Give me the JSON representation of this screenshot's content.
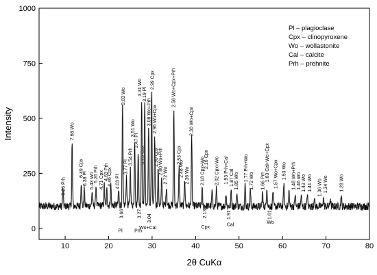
{
  "chart_data": {
    "type": "line",
    "xlabel": "2θ CuKα",
    "ylabel": "Intensity",
    "xlim": [
      4,
      80
    ],
    "ylim": [
      -50,
      1000
    ],
    "xticks": [
      10,
      20,
      30,
      40,
      50,
      60,
      70,
      80
    ],
    "yticks": [
      0,
      250,
      500,
      750,
      1000
    ],
    "grid": false,
    "legend_position": "top-right",
    "legend": [
      "Pl – plagioclase",
      "Cpx – clinopyroxene",
      "Wo – wollastonite",
      "Cal – calcite",
      "Prh – prehnite"
    ],
    "baseline": 100,
    "peaks": [
      {
        "x": 9.5,
        "y": 185
      },
      {
        "x": 11.6,
        "y": 385
      },
      {
        "x": 13.7,
        "y": 210
      },
      {
        "x": 14.4,
        "y": 178
      },
      {
        "x": 16.2,
        "y": 162
      },
      {
        "x": 17.1,
        "y": 190
      },
      {
        "x": 19.0,
        "y": 195
      },
      {
        "x": 19.6,
        "y": 172
      },
      {
        "x": 20.5,
        "y": 192
      },
      {
        "x": 22.3,
        "y": 165
      },
      {
        "x": 23.2,
        "y": 540
      },
      {
        "x": 24.1,
        "y": 230
      },
      {
        "x": 25.0,
        "y": 265
      },
      {
        "x": 26.0,
        "y": 400
      },
      {
        "x": 26.8,
        "y": 340
      },
      {
        "x": 27.6,
        "y": 580
      },
      {
        "x": 28.3,
        "y": 555
      },
      {
        "x": 29.2,
        "y": 440
      },
      {
        "x": 29.9,
        "y": 610
      },
      {
        "x": 30.6,
        "y": 410
      },
      {
        "x": 31.4,
        "y": 265
      },
      {
        "x": 32.2,
        "y": 215
      },
      {
        "x": 33.3,
        "y": 185
      },
      {
        "x": 35.0,
        "y": 530
      },
      {
        "x": 36.2,
        "y": 275
      },
      {
        "x": 37.5,
        "y": 225
      },
      {
        "x": 39.1,
        "y": 405
      },
      {
        "x": 41.5,
        "y": 180
      },
      {
        "x": 43.8,
        "y": 168
      },
      {
        "x": 44.8,
        "y": 178
      },
      {
        "x": 47.0,
        "y": 160
      },
      {
        "x": 48.2,
        "y": 175
      },
      {
        "x": 49.5,
        "y": 160
      },
      {
        "x": 51.4,
        "y": 195
      },
      {
        "x": 52.6,
        "y": 170
      },
      {
        "x": 55.4,
        "y": 160
      },
      {
        "x": 56.4,
        "y": 190
      },
      {
        "x": 57.8,
        "y": 170
      },
      {
        "x": 60.3,
        "y": 205
      },
      {
        "x": 61.5,
        "y": 168
      },
      {
        "x": 62.9,
        "y": 155
      },
      {
        "x": 64.3,
        "y": 150
      },
      {
        "x": 65.7,
        "y": 158
      },
      {
        "x": 67.3,
        "y": 142
      },
      {
        "x": 69.4,
        "y": 140
      },
      {
        "x": 71.0,
        "y": 138
      },
      {
        "x": 73.5,
        "y": 150
      }
    ],
    "annotations": [
      {
        "text": "9.26 Prh",
        "x": 9.55,
        "y": 150,
        "rot": true
      },
      {
        "text": "7.68 Wo",
        "x": 11.6,
        "y": 400,
        "rot": true
      },
      {
        "text": "6.49 Cpx",
        "x": 13.6,
        "y": 230,
        "rot": true
      },
      {
        "text": "6.38 Pl",
        "x": 14.5,
        "y": 192,
        "rot": true
      },
      {
        "text": "5.43 Wo",
        "x": 16.1,
        "y": 176,
        "rot": true
      },
      {
        "text": "5.26 Prh",
        "x": 17.0,
        "y": 205,
        "rot": true
      },
      {
        "text": "4.71 Cpx",
        "x": 18.3,
        "y": 176,
        "rot": true
      },
      {
        "text": "4.63 Prh",
        "x": 19.4,
        "y": 215,
        "rot": true
      },
      {
        "text": "4.46 Cpx",
        "x": 20.2,
        "y": 190,
        "rot": true
      },
      {
        "text": "4.03 Pl",
        "x": 22.0,
        "y": 178,
        "rot": true
      },
      {
        "text": "3.83 Wo",
        "x": 23.3,
        "y": 560,
        "rot": true
      },
      {
        "text": "3.77 Pl",
        "x": 23.9,
        "y": 245,
        "rot": true
      },
      {
        "text": "3.54 Prh",
        "x": 25.0,
        "y": 285,
        "rot": true
      },
      {
        "text": "3.51 Wo",
        "x": 25.5,
        "y": 415,
        "rot": true
      },
      {
        "text": "3.47 Pl",
        "x": 26.3,
        "y": 365,
        "rot": true
      },
      {
        "text": "3.31 Wo",
        "x": 27.1,
        "y": 600,
        "rot": true
      },
      {
        "text": "3.23 Cpx",
        "x": 27.7,
        "y": 290,
        "rot": true
      },
      {
        "text": "3.19 Pl",
        "x": 28.2,
        "y": 575,
        "rot": true
      },
      {
        "text": "3.08 Wo+Prh",
        "x": 29.2,
        "y": 465,
        "rot": true
      },
      {
        "text": "2.99 Cpx",
        "x": 30.0,
        "y": 630,
        "rot": true
      },
      {
        "text": "2.96 Wo+Cpx",
        "x": 30.6,
        "y": 430,
        "rot": true
      },
      {
        "text": "2.90 Cpx",
        "x": 30.9,
        "y": 280,
        "rot": true
      },
      {
        "text": "2.80 Wo+Prh",
        "x": 31.9,
        "y": 240,
        "rot": true
      },
      {
        "text": "2.72 Wo",
        "x": 33.0,
        "y": 200,
        "rot": true
      },
      {
        "text": "2.56 Wo+Cpx+Prh",
        "x": 34.9,
        "y": 550,
        "rot": true
      },
      {
        "text": "2.53 Cpx",
        "x": 36.2,
        "y": 290,
        "rot": true
      },
      {
        "text": "2.48 Wo",
        "x": 36.6,
        "y": 230,
        "rot": true
      },
      {
        "text": "2.36 Wo",
        "x": 38.0,
        "y": 200,
        "rot": true
      },
      {
        "text": "2.30 Wo+Cpx",
        "x": 39.0,
        "y": 420,
        "rot": true
      },
      {
        "text": "2.18 Cpx+Wo",
        "x": 41.5,
        "y": 195,
        "rot": true
      },
      {
        "text": "2.16 Cpx",
        "x": 42.4,
        "y": 270,
        "rot": true
      },
      {
        "text": "2.02 Cpx+Wo",
        "x": 44.8,
        "y": 195,
        "rot": true
      },
      {
        "text": "1.93 Prh+Cal",
        "x": 47.0,
        "y": 200,
        "rot": true
      },
      {
        "text": "1.87 Cal",
        "x": 48.2,
        "y": 190,
        "rot": true
      },
      {
        "text": "1.85 Wo",
        "x": 49.3,
        "y": 175,
        "rot": true
      },
      {
        "text": "1.77 Prh+Wo",
        "x": 51.5,
        "y": 210,
        "rot": true
      },
      {
        "text": "1.72 Wo",
        "x": 52.8,
        "y": 175,
        "rot": true
      },
      {
        "text": "1.66 Prh",
        "x": 55.4,
        "y": 175,
        "rot": true
      },
      {
        "text": "1.63 Cal+Wo+Cpx",
        "x": 56.4,
        "y": 210,
        "rot": true
      },
      {
        "text": "1.57 Wo+Cpx",
        "x": 58.4,
        "y": 180,
        "rot": true
      },
      {
        "text": "1.53 Wo",
        "x": 60.3,
        "y": 220,
        "rot": true
      },
      {
        "text": "1.48 Wo+Prh",
        "x": 62.5,
        "y": 175,
        "rot": true
      },
      {
        "text": "1.46 Wo",
        "x": 63.7,
        "y": 175,
        "rot": true
      },
      {
        "text": "1.43 Wo",
        "x": 64.8,
        "y": 165,
        "rot": true
      },
      {
        "text": "1.41 Wo",
        "x": 66.2,
        "y": 165,
        "rot": true
      },
      {
        "text": "1.36 Wo",
        "x": 68.5,
        "y": 145,
        "rot": true
      },
      {
        "text": "1.34 Wo",
        "x": 69.8,
        "y": 160,
        "rot": true
      },
      {
        "text": "1.28 Wo",
        "x": 73.5,
        "y": 165,
        "rot": true
      },
      {
        "text": "3.66",
        "x": 22.9,
        "y": 45,
        "rot": true
      },
      {
        "text": "3.27",
        "x": 27.0,
        "y": 45,
        "rot": true
      },
      {
        "text": "3.04",
        "x": 29.3,
        "y": 25,
        "rot": true
      },
      {
        "text": "2.13",
        "x": 42.1,
        "y": 45,
        "rot": true
      },
      {
        "text": "1.91",
        "x": 47.6,
        "y": 40,
        "rot": true
      },
      {
        "text": "1.61",
        "x": 57.0,
        "y": 40,
        "rot": true
      },
      {
        "text": "Pl",
        "x": 22.7,
        "y": -17,
        "rot": false
      },
      {
        "text": "Prh",
        "x": 26.8,
        "y": -17,
        "rot": false
      },
      {
        "text": "Wo+Cal",
        "x": 29.0,
        "y": -3,
        "rot": false
      },
      {
        "text": "Cpx",
        "x": 42.3,
        "y": 0,
        "rot": false
      },
      {
        "text": "Cal",
        "x": 48.0,
        "y": 10,
        "rot": false
      },
      {
        "text": "Wo",
        "x": 57.2,
        "y": 22,
        "rot": false
      }
    ]
  }
}
